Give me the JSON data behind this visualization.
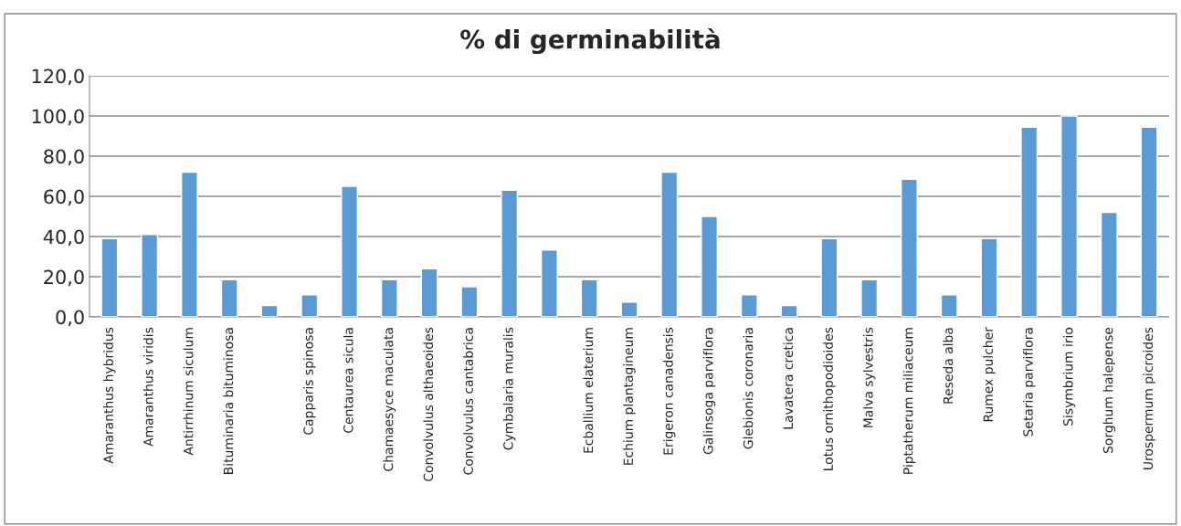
{
  "chart_data": {
    "type": "bar",
    "title": "% di germinabilità",
    "categories": [
      "Amaranthus hybridus",
      "Amaranthus viridis",
      "Antirrhinum siculum",
      "Bituminaria bituminosa",
      null,
      "Capparis spinosa",
      "Centaurea sicula",
      "Chamaesyce maculata",
      "Convolvulus althaeoides",
      "Convolvulus cantabrica",
      "Cymbalaria muralis",
      null,
      "Ecballium elaterium",
      "Echium plantagineum",
      "Erigeron canadensis",
      "Galinsoga parviflora",
      "Glebionis coronaria",
      "Lavatera cretica",
      "Lotus ornithopodioides",
      "Malva sylvestris",
      "Piptatherum miliaceum",
      "Reseda alba",
      "Rumex pulcher",
      "Setaria parviflora",
      "Sisymbrium irio",
      "Sorghum halepense",
      "Urospermum picroides"
    ],
    "values": [
      39,
      41,
      72,
      18.5,
      5.6,
      11,
      65,
      18.5,
      24,
      15,
      63,
      33.3,
      18.5,
      7.4,
      72,
      50,
      11,
      5.6,
      39,
      18.5,
      68.5,
      11,
      39,
      94.4,
      100,
      52,
      94.4
    ],
    "color": "#5b9bd5",
    "ylim": [
      0,
      120
    ],
    "yticks": [
      {
        "value": 0,
        "label": "0,0"
      },
      {
        "value": 20,
        "label": "20,0"
      },
      {
        "value": 40,
        "label": "40,0"
      },
      {
        "value": 60,
        "label": "60,0"
      },
      {
        "value": 80,
        "label": "80,0"
      },
      {
        "value": 100,
        "label": "100,0"
      },
      {
        "value": 120,
        "label": "120,0"
      }
    ],
    "grid": "y",
    "legend": false
  }
}
